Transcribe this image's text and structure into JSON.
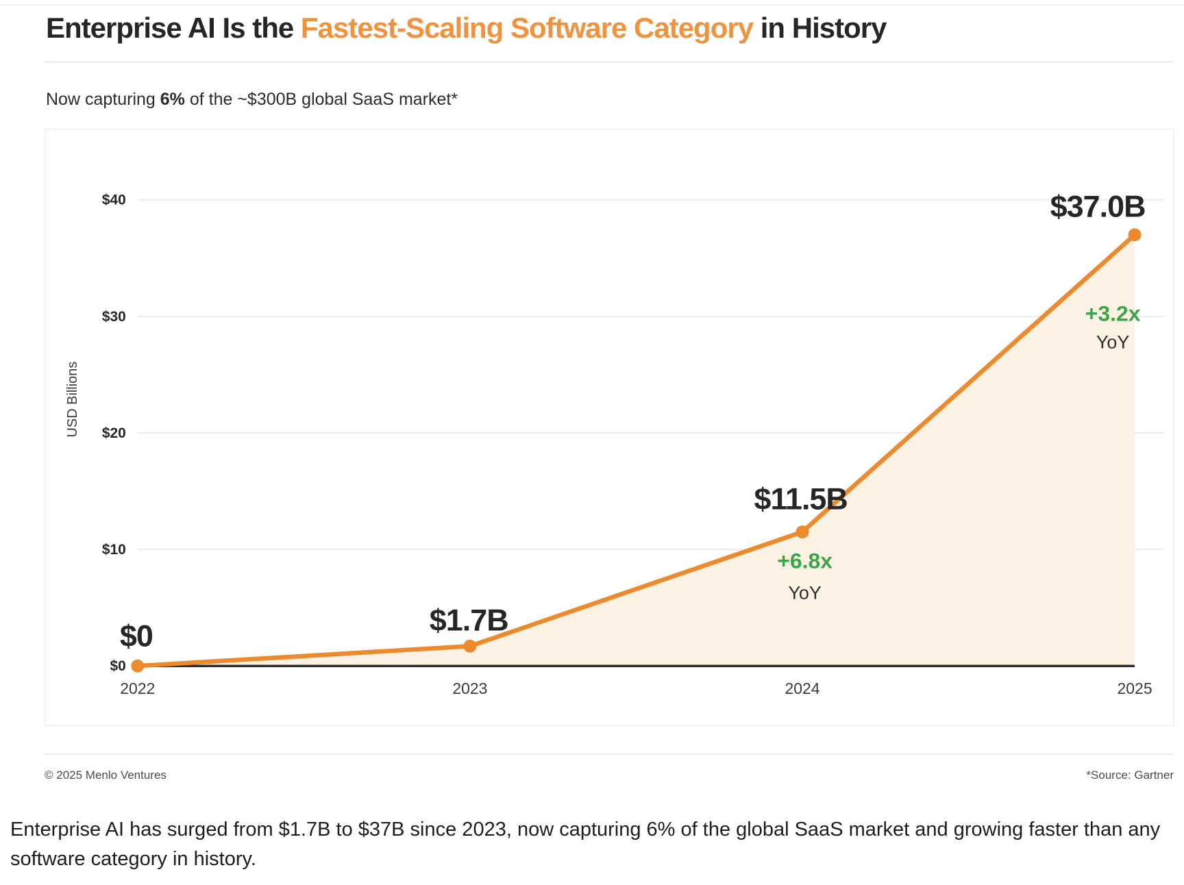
{
  "page": {
    "title": {
      "part1": "Enterprise AI Is the ",
      "highlight": "Fastest-Scaling Software Category",
      "part2": " in History"
    },
    "subtitle": {
      "prefix": "Now capturing ",
      "bold": "6%",
      "suffix": " of the ~$300B global SaaS market*"
    },
    "footer": {
      "copyright": "© 2025 Menlo Ventures",
      "source": "*Source: Gartner"
    },
    "caption": "Enterprise AI has surged from $1.7B to $37B since 2023, now capturing 6% of the global SaaS market and growing faster than any software category in history."
  },
  "colors": {
    "orange": "#EC8A2E",
    "title_orange": "#F0923E",
    "green": "#3EA449",
    "area_fill": "#FBF2E4",
    "grid": "#ECECEC",
    "axis": "#2D2D2D",
    "dark_text": "#262626",
    "tick_text": "#3a3a3a"
  },
  "chart_data": {
    "type": "line",
    "x": [
      "2022",
      "2023",
      "2024",
      "2025"
    ],
    "values": [
      0,
      1.7,
      11.5,
      37.0
    ],
    "point_labels": [
      "$0",
      "$1.7B",
      "$11.5B",
      "$37.0B"
    ],
    "ylabel": "USD Billions",
    "ylim": [
      0,
      40
    ],
    "yticks": [
      {
        "value": 0,
        "label": "$0"
      },
      {
        "value": 10,
        "label": "$10"
      },
      {
        "value": 20,
        "label": "$20"
      },
      {
        "value": 30,
        "label": "$30"
      },
      {
        "value": 40,
        "label": "$40"
      }
    ],
    "grid": true,
    "legend": "none",
    "area_fill": true,
    "growth_annotations": [
      {
        "x": "2024",
        "x_index": 2,
        "multiplier": "+6.8x",
        "label": "YoY"
      },
      {
        "x": "2025",
        "x_index": 3,
        "multiplier": "+3.2x",
        "label": "YoY"
      }
    ]
  }
}
